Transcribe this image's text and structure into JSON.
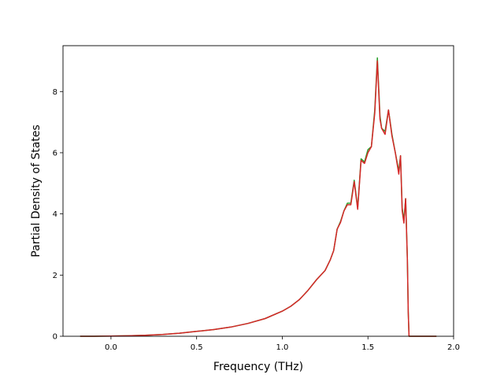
{
  "chart_data": {
    "type": "line",
    "title": "",
    "xlabel": "Frequency (THz)",
    "ylabel": "Partial Density of States",
    "xlim": [
      -0.28,
      2.0
    ],
    "ylim": [
      0,
      9.5
    ],
    "xticks": [
      0.0,
      0.5,
      1.0,
      1.5,
      2.0
    ],
    "xtick_labels": [
      "0.0",
      "0.5",
      "1.0",
      "1.5",
      "2.0"
    ],
    "yticks": [
      0,
      2,
      4,
      6,
      8
    ],
    "ytick_labels": [
      "0",
      "2",
      "4",
      "6",
      "8"
    ],
    "grid": false,
    "legend": "none",
    "series": [
      {
        "color": "#2ca02c",
        "x": [
          -0.18,
          -0.1,
          0.0,
          0.1,
          0.2,
          0.3,
          0.4,
          0.5,
          0.6,
          0.7,
          0.8,
          0.9,
          1.0,
          1.05,
          1.1,
          1.15,
          1.2,
          1.22,
          1.25,
          1.28,
          1.3,
          1.32,
          1.34,
          1.36,
          1.38,
          1.4,
          1.42,
          1.44,
          1.46,
          1.48,
          1.5,
          1.52,
          1.54,
          1.555,
          1.57,
          1.58,
          1.6,
          1.62,
          1.64,
          1.66,
          1.68,
          1.69,
          1.7,
          1.71,
          1.72,
          1.73,
          1.735,
          1.74,
          1.76,
          1.8,
          1.9
        ],
        "y": [
          0,
          0,
          0.005,
          0.015,
          0.03,
          0.06,
          0.1,
          0.16,
          0.22,
          0.3,
          0.42,
          0.58,
          0.82,
          0.98,
          1.2,
          1.5,
          1.85,
          1.97,
          2.15,
          2.5,
          2.8,
          3.5,
          3.75,
          4.1,
          4.35,
          4.35,
          5.1,
          4.2,
          5.8,
          5.7,
          6.1,
          6.2,
          7.4,
          9.1,
          7.2,
          6.8,
          6.7,
          7.4,
          6.6,
          6.0,
          5.4,
          5.9,
          4.2,
          3.8,
          4.5,
          2.5,
          0.8,
          0.0,
          0.0,
          0.0,
          0.0
        ]
      },
      {
        "color": "#d62728",
        "x": [
          -0.18,
          -0.1,
          0.0,
          0.1,
          0.2,
          0.3,
          0.4,
          0.5,
          0.6,
          0.7,
          0.8,
          0.9,
          1.0,
          1.05,
          1.1,
          1.15,
          1.2,
          1.22,
          1.25,
          1.28,
          1.3,
          1.32,
          1.34,
          1.36,
          1.38,
          1.4,
          1.42,
          1.44,
          1.46,
          1.48,
          1.5,
          1.52,
          1.54,
          1.555,
          1.57,
          1.58,
          1.6,
          1.62,
          1.64,
          1.66,
          1.68,
          1.69,
          1.7,
          1.71,
          1.72,
          1.73,
          1.735,
          1.74,
          1.76,
          1.8,
          1.9
        ],
        "y": [
          0,
          0,
          0.005,
          0.015,
          0.03,
          0.06,
          0.1,
          0.16,
          0.22,
          0.3,
          0.42,
          0.58,
          0.82,
          0.98,
          1.2,
          1.5,
          1.85,
          1.97,
          2.15,
          2.5,
          2.8,
          3.5,
          3.72,
          4.1,
          4.3,
          4.3,
          5.05,
          4.15,
          5.75,
          5.65,
          6.0,
          6.2,
          7.3,
          9.0,
          7.1,
          6.8,
          6.6,
          7.4,
          6.55,
          6.0,
          5.3,
          5.9,
          4.1,
          3.7,
          4.5,
          2.5,
          0.8,
          0.0,
          0.0,
          0.0,
          0.0
        ]
      }
    ]
  }
}
